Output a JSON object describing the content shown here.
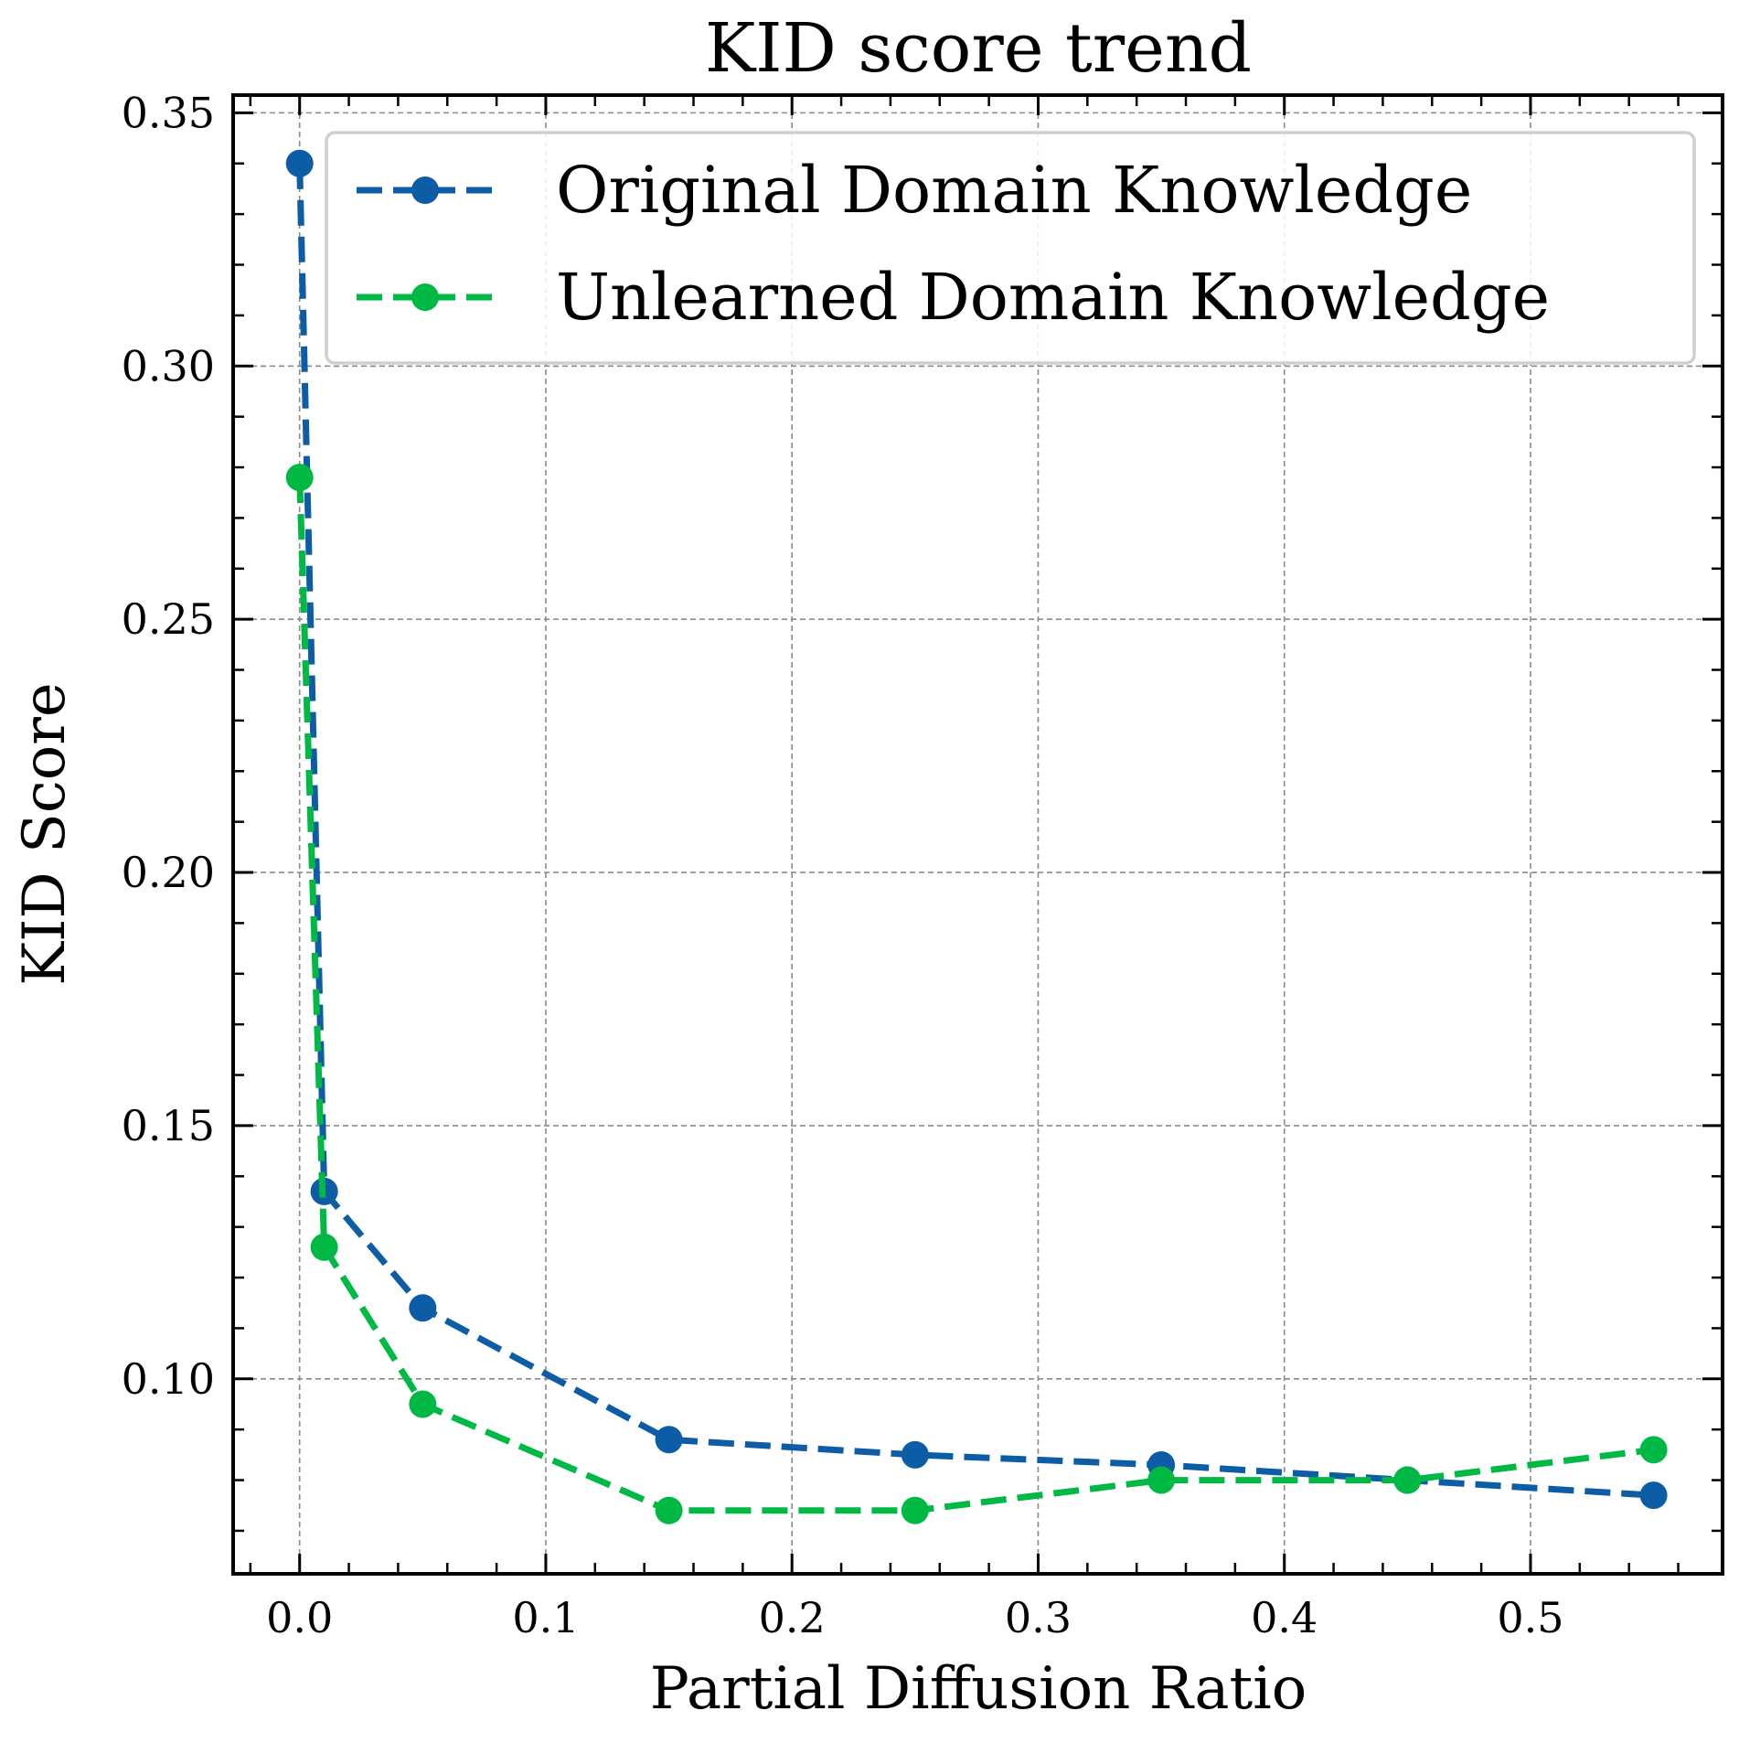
{
  "chart_data": {
    "type": "line",
    "title": "KID score trend",
    "xlabel": "Partial Diffusion Ratio",
    "ylabel": "KID Score",
    "xlim": [
      -0.027,
      0.578
    ],
    "ylim": [
      0.0615,
      0.3535
    ],
    "x": [
      0.0,
      0.01,
      0.05,
      0.15,
      0.25,
      0.35,
      0.45,
      0.55
    ],
    "xticks": [
      0.0,
      0.1,
      0.2,
      0.3,
      0.4,
      0.5
    ],
    "xtick_labels": [
      "0.0",
      "0.1",
      "0.2",
      "0.3",
      "0.4",
      "0.5"
    ],
    "yticks": [
      0.1,
      0.15,
      0.2,
      0.25,
      0.3,
      0.35
    ],
    "ytick_labels": [
      "0.10",
      "0.15",
      "0.20",
      "0.25",
      "0.30",
      "0.35"
    ],
    "grid": true,
    "legend_position": "top-right",
    "series": [
      {
        "name": "Original Domain Knowledge",
        "color": "#0C5DA5",
        "marker": "circle",
        "line_style": "dashed",
        "values": [
          0.34,
          0.137,
          0.114,
          0.088,
          0.085,
          0.083,
          0.08,
          0.077
        ]
      },
      {
        "name": "Unlearned Domain Knowledge",
        "color": "#00B945",
        "marker": "circle",
        "line_style": "dashed",
        "values": [
          0.278,
          0.126,
          0.095,
          0.074,
          0.074,
          0.08,
          0.08,
          0.086
        ]
      }
    ]
  }
}
